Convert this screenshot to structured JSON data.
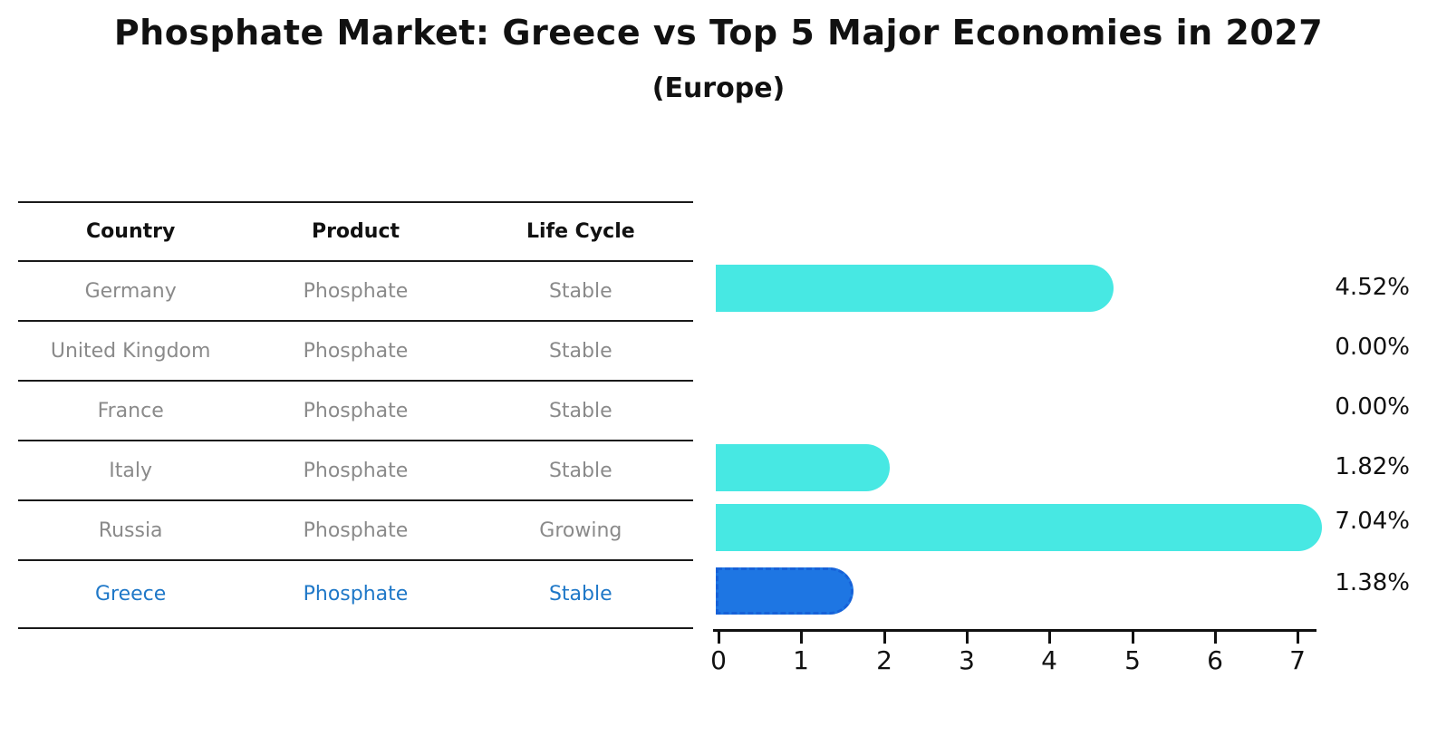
{
  "title": "Phosphate Market: Greece vs Top 5 Major Economies in 2027",
  "subtitle": "(Europe)",
  "table": {
    "headers": [
      "Country",
      "Product",
      "Life Cycle"
    ],
    "rows": [
      {
        "country": "Germany",
        "product": "Phosphate",
        "life_cycle": "Stable",
        "highlight": false
      },
      {
        "country": "United Kingdom",
        "product": "Phosphate",
        "life_cycle": "Stable",
        "highlight": false
      },
      {
        "country": "France",
        "product": "Phosphate",
        "life_cycle": "Stable",
        "highlight": false
      },
      {
        "country": "Italy",
        "product": "Phosphate",
        "life_cycle": "Stable",
        "highlight": false
      },
      {
        "country": "Russia",
        "product": "Phosphate",
        "life_cycle": "Growing",
        "highlight": false
      },
      {
        "country": "Greece",
        "product": "Phosphate",
        "life_cycle": "Stable",
        "highlight": true
      }
    ]
  },
  "chart_data": {
    "type": "bar",
    "orientation": "horizontal",
    "title": "Phosphate Market: Greece vs Top 5 Major Economies in 2027",
    "subtitle": "(Europe)",
    "categories": [
      "Germany",
      "United Kingdom",
      "France",
      "Italy",
      "Russia",
      "Greece"
    ],
    "values": [
      4.52,
      0.0,
      0.0,
      1.82,
      7.04,
      1.38
    ],
    "value_labels": [
      "4.52%",
      "0.00%",
      "0.00%",
      "1.82%",
      "7.04%",
      "1.38%"
    ],
    "x_ticks": [
      "0",
      "1",
      "2",
      "3",
      "4",
      "5",
      "6",
      "7"
    ],
    "xlim": [
      0,
      7.3
    ],
    "xlabel": "",
    "ylabel": "",
    "grid": false,
    "legend": "none",
    "highlight_index": 5,
    "colors": {
      "bar": "#47e8e3",
      "highlight_bar": "#1e76e3",
      "highlight_border": "#1661d8",
      "highlight_text": "#1f78c8",
      "table_text": "#8a8a8a",
      "axis_text": "#111111"
    }
  }
}
